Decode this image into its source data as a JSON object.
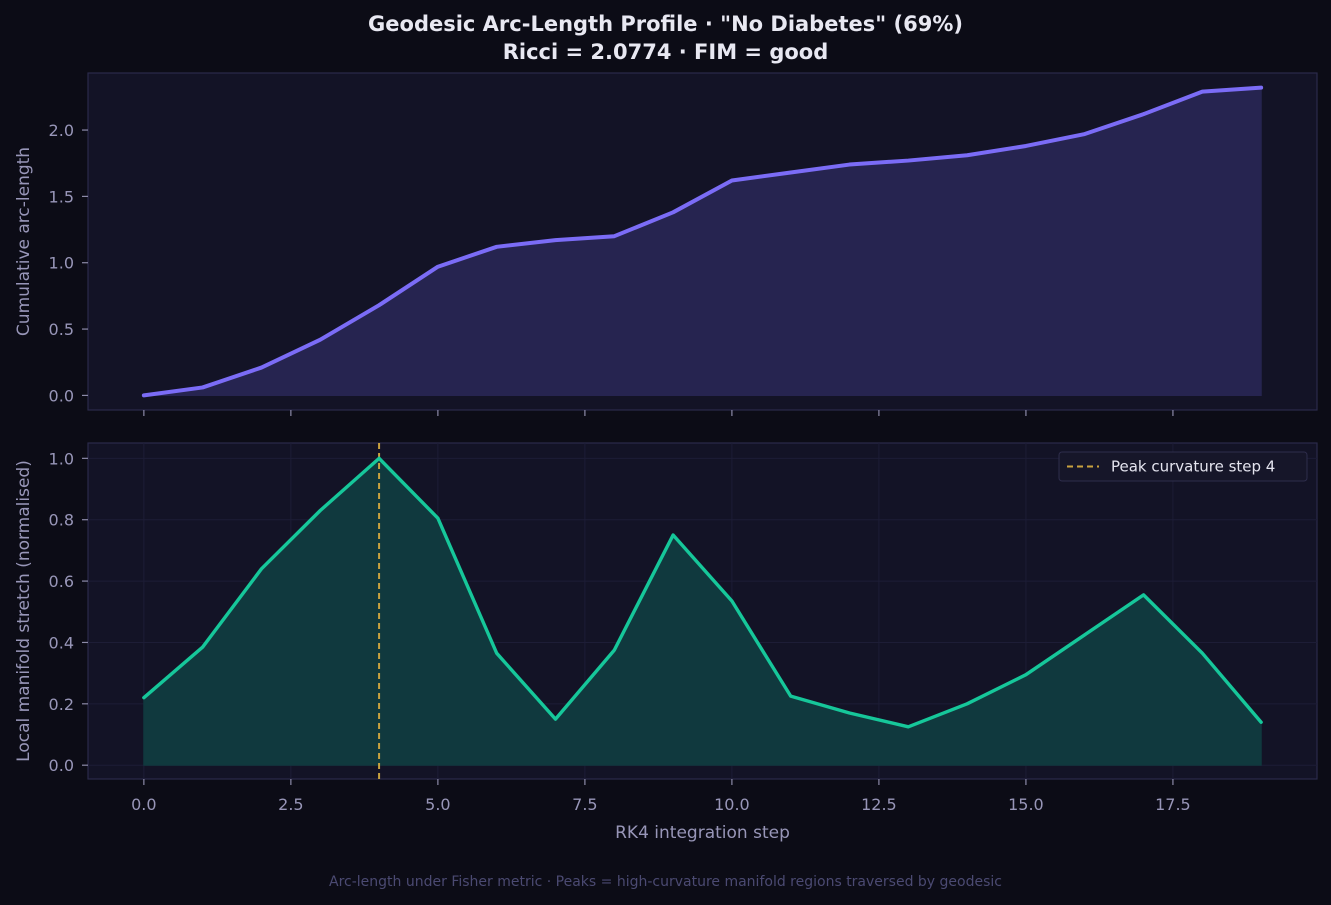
{
  "title_line1": "Geodesic Arc-Length Profile  ·  \"No Diabetes\" (69%)",
  "title_line2": "Ricci = 2.0774  ·  FIM = good",
  "footer": "Arc-length under Fisher metric  ·  Peaks = high-curvature manifold regions traversed by geodesic",
  "colors": {
    "background": "#0c0c16",
    "panel": "#131326",
    "arc_line": "#7b6cf6",
    "arc_fill": "#262450",
    "stretch_line": "#16c79a",
    "stretch_fill": "#10393e",
    "peak_line": "#c9a23f"
  },
  "chart_data": [
    {
      "type": "area",
      "title": "",
      "xlabel": "",
      "ylabel": "Cumulative arc-length",
      "xlim": [
        -0.95,
        19.95
      ],
      "ylim": [
        -0.11,
        2.43
      ],
      "grid": false,
      "x_ticks": [
        0,
        2.5,
        5,
        7.5,
        10,
        12.5,
        15,
        17.5
      ],
      "y_ticks": [
        0.0,
        0.5,
        1.0,
        1.5,
        2.0
      ],
      "y_tick_labels": [
        "0.0",
        "0.5",
        "1.0",
        "1.5",
        "2.0"
      ],
      "series": [
        {
          "x": [
            0,
            1,
            2,
            3,
            4,
            5,
            6,
            7,
            8,
            9,
            10,
            11,
            12,
            13,
            14,
            15,
            16,
            17,
            18,
            19
          ],
          "values": [
            0.0,
            0.06,
            0.21,
            0.42,
            0.68,
            0.97,
            1.12,
            1.17,
            1.2,
            1.38,
            1.62,
            1.68,
            1.74,
            1.77,
            1.81,
            1.88,
            1.97,
            2.12,
            2.29,
            2.32
          ]
        }
      ]
    },
    {
      "type": "area",
      "title": "",
      "xlabel": "RK4 integration step",
      "ylabel": "Local manifold stretch (normalised)",
      "xlim": [
        -0.95,
        19.95
      ],
      "ylim": [
        -0.045,
        1.05
      ],
      "grid": true,
      "x_ticks": [
        0,
        2.5,
        5,
        7.5,
        10,
        12.5,
        15,
        17.5
      ],
      "x_tick_labels": [
        "0.0",
        "2.5",
        "5.0",
        "7.5",
        "10.0",
        "12.5",
        "15.0",
        "17.5"
      ],
      "y_ticks": [
        0.0,
        0.2,
        0.4,
        0.6,
        0.8,
        1.0
      ],
      "y_tick_labels": [
        "0.0",
        "0.2",
        "0.4",
        "0.6",
        "0.8",
        "1.0"
      ],
      "legend_position": "top-right",
      "vline": {
        "x": 4,
        "label": "Peak curvature  step 4"
      },
      "series": [
        {
          "x": [
            0,
            1,
            2,
            3,
            4,
            5,
            6,
            7,
            8,
            9,
            10,
            11,
            12,
            13,
            14,
            15,
            16,
            17,
            18,
            19
          ],
          "values": [
            0.22,
            0.385,
            0.64,
            0.83,
            1.0,
            0.805,
            0.365,
            0.15,
            0.375,
            0.75,
            0.535,
            0.225,
            0.17,
            0.125,
            0.2,
            0.295,
            0.425,
            0.555,
            0.365,
            0.14
          ]
        }
      ]
    }
  ]
}
